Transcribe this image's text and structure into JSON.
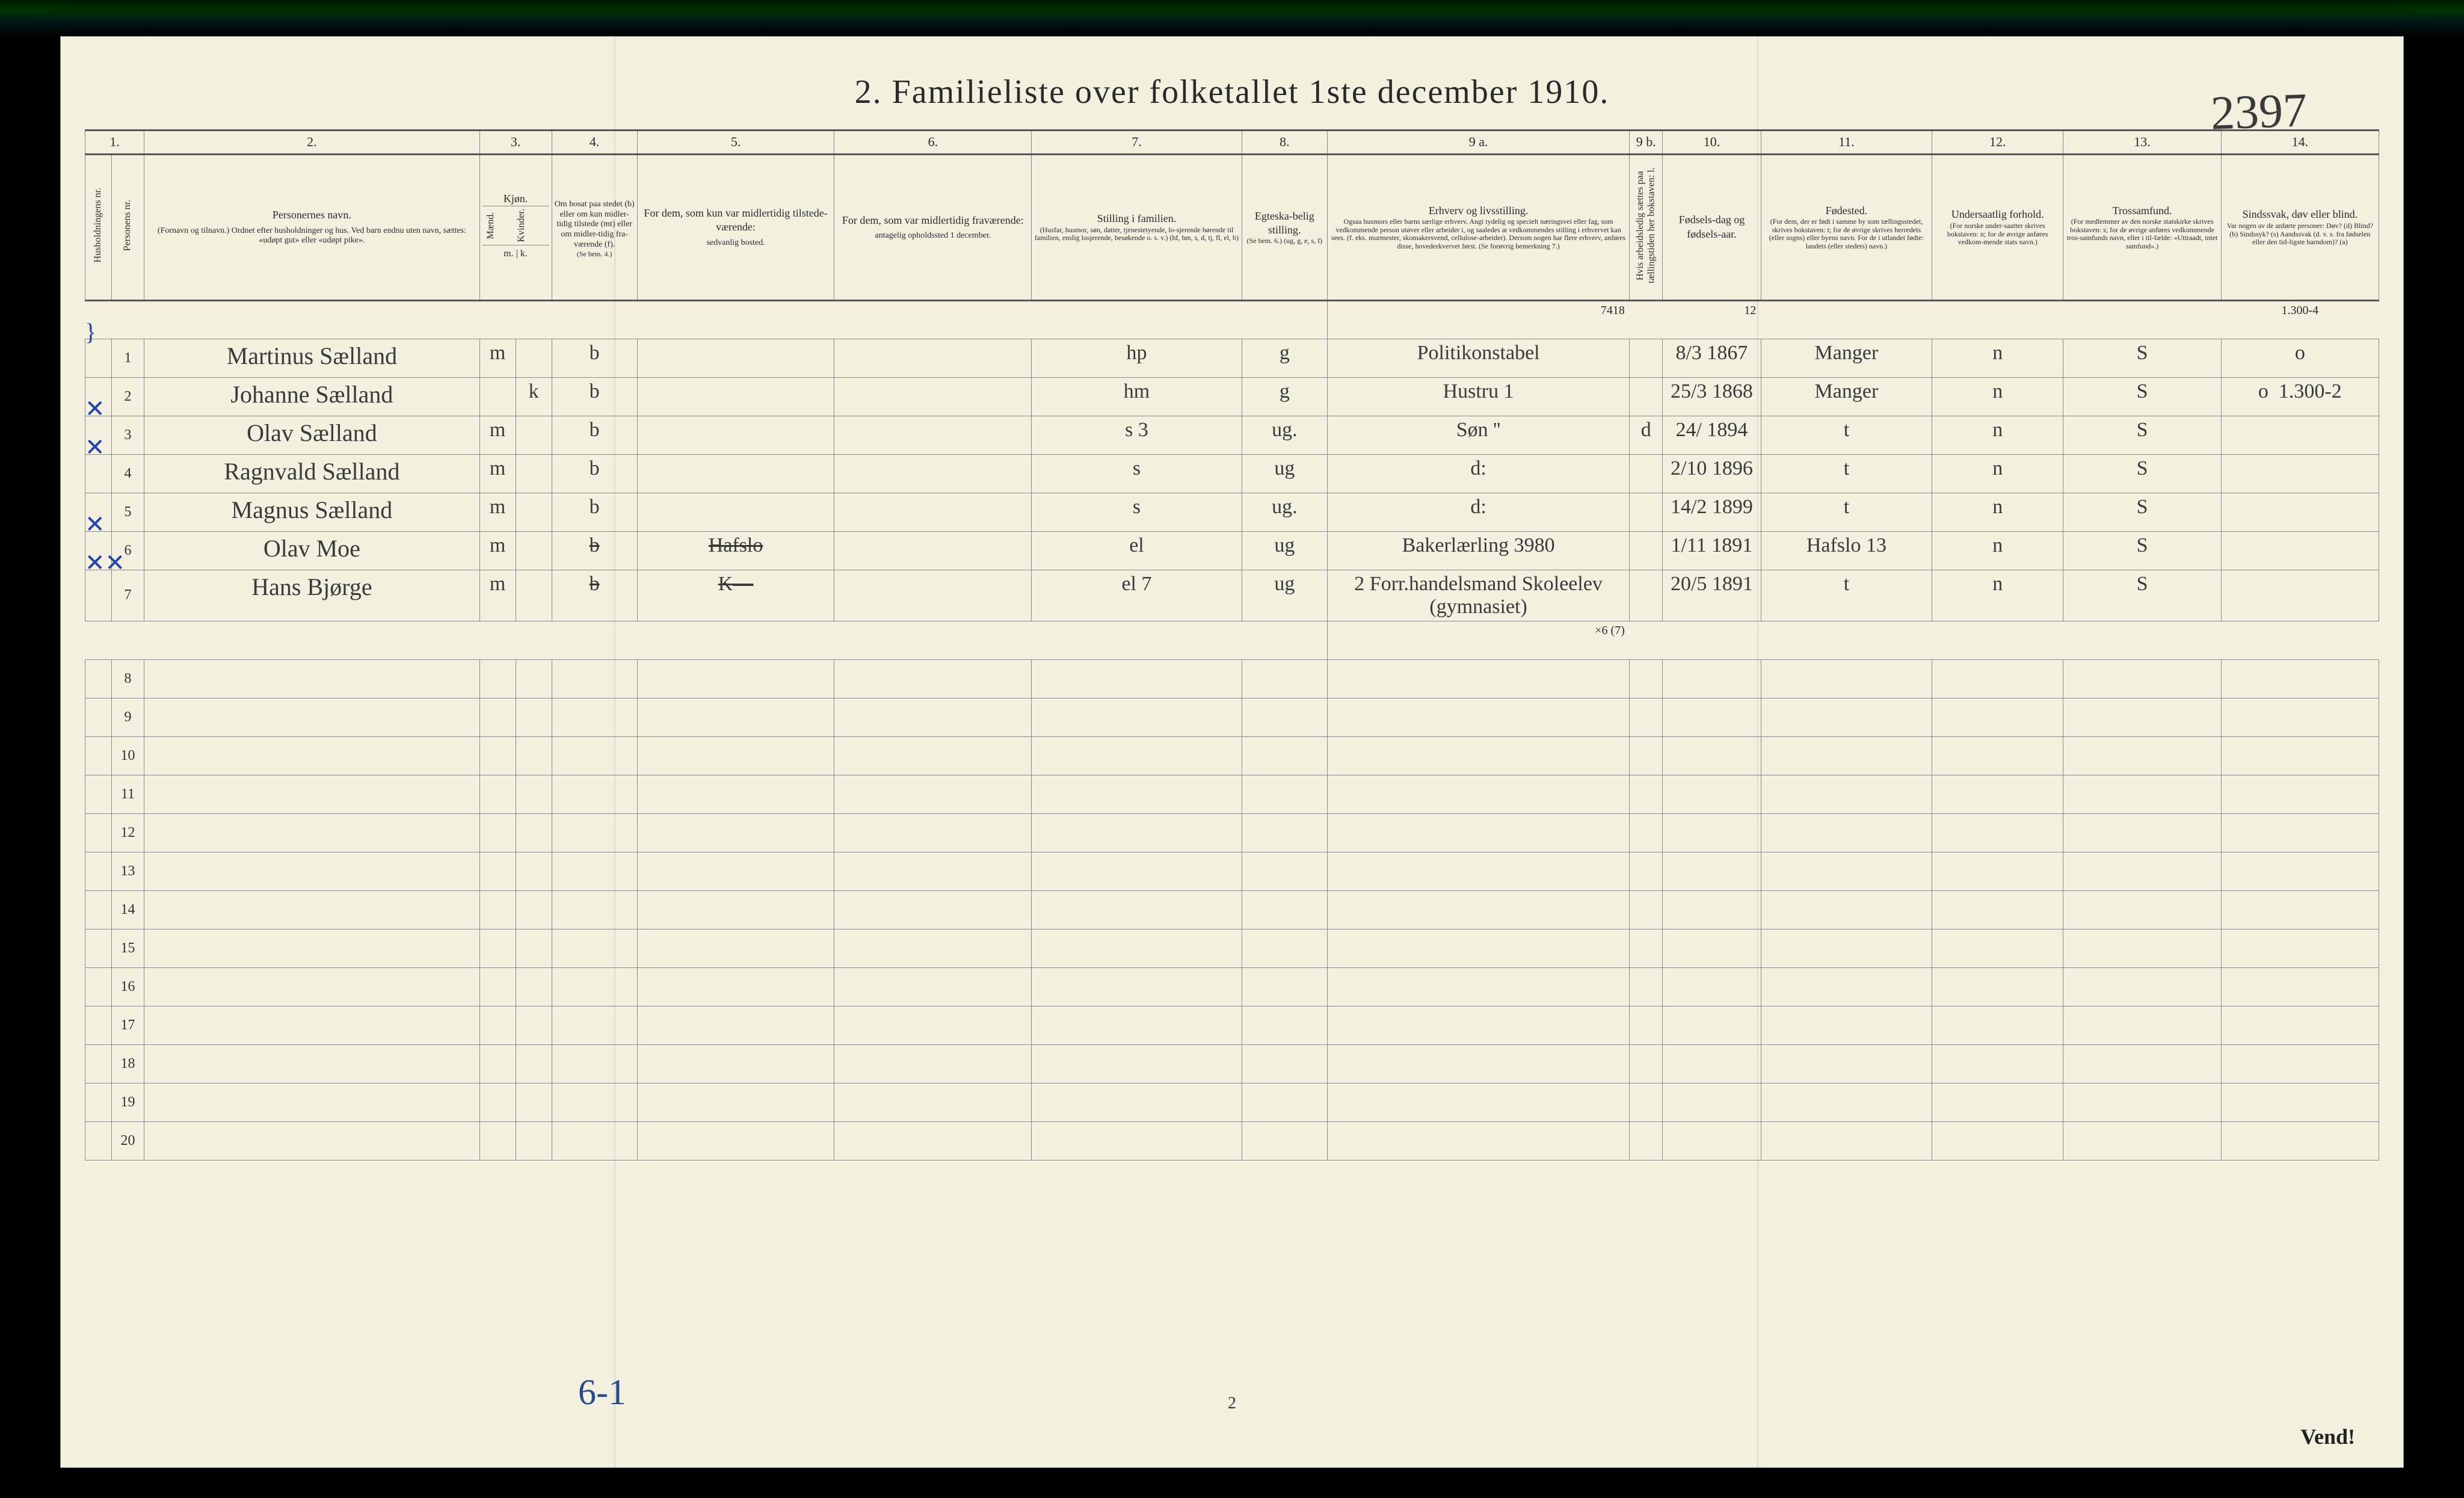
{
  "title": "2.   Familieliste over folketallet 1ste december 1910.",
  "handwritten_topright": "2397",
  "footer_left": "6-1",
  "footer_center": "2",
  "footer_right": "Vend!",
  "colors": {
    "paper": "#f4f0e0",
    "ink": "#2a2a2a",
    "rule": "#888888",
    "rule_heavy": "#555555",
    "pencil_blue": "#2244aa",
    "handwriting": "#3a3a3a"
  },
  "columns": {
    "nums": [
      "1.",
      "2.",
      "3.",
      "4.",
      "5.",
      "6.",
      "7.",
      "8.",
      "9 a.",
      "9 b.",
      "10.",
      "11.",
      "12.",
      "13.",
      "14."
    ],
    "c1_a": "Husholdningens nr.",
    "c1_b": "Personens nr.",
    "c2_title": "Personernes navn.",
    "c2_sub": "(Fornavn og tilnavn.)\nOrdnet efter husholdninger og hus.\nVed barn endnu uten navn, sættes: «udøpt gut» eller «udøpt pike».",
    "c3_title": "Kjøn.",
    "c3_sub": "Mænd. | Kvinder.",
    "c3_mk": "m. | k.",
    "c4_title": "Om bosat paa stedet (b) eller om kun midler-tidig tilstede (mt) eller om midler-tidig fra-værende (f).",
    "c4_sub": "(Se bem. 4.)",
    "c5_title": "For dem, som kun var midlertidig tilstede-værende:",
    "c5_sub": "sedvanlig bosted.",
    "c6_title": "For dem, som var midlertidig fraværende:",
    "c6_sub": "antagelig opholdssted 1 december.",
    "c7_title": "Stilling i familien.",
    "c7_sub": "(Husfar, husmor, søn, datter, tjenestetyende, lo-sjerende hørende til familien, enslig losjerende, besøkende o. s. v.)\n(hf, hm, s, d, tj, fl, el, b)",
    "c8_title": "Egteska-belig stilling.",
    "c8_sub": "(Se bem. 6.) (ug, g, e, s, f)",
    "c9a_title": "Erhverv og livsstilling.",
    "c9a_sub": "Ogsaa husmors eller barns særlige erhverv. Angi tydelig og specielt næringsvei eller fag, som vedkommende person utøver eller arbeider i, og saaledes at vedkommendes stilling i erhvervet kan sees. (f. eks. murmester, skomakersvend, cellulose-arbeider). Dersom nogen har flere erhverv, anføres disse, hovederkvervet først.\n(Se forøvrig bemerkning 7.)",
    "c9b_title": "Hvis arbeidsledig sættes paa tællingstiden her bokstaven: l.",
    "c10_title": "Fødsels-dag og fødsels-aar.",
    "c11_title": "Fødested.",
    "c11_sub": "(For dem, der er født i samme by som tællingsstedet, skrives bokstaven: t; for de øvrige skrives herredets (eller sogns) eller byens navn. For de i utlandet fødte: landets (eller stedets) navn.)",
    "c12_title": "Undersaatlig forhold.",
    "c12_sub": "(For norske under-saatter skrives bokstaven: n; for de øvrige anføres vedkom-mende stats navn.)",
    "c13_title": "Trossamfund.",
    "c13_sub": "(For medlemmer av den norske statskirke skrives bokstaven: s; for de øvrige anføres vedkommende tros-samfunds navn, eller i til-fælde: «Uttraadt, intet samfund».)",
    "c14_title": "Sindssvak, døv eller blind.",
    "c14_sub": "Var nogen av de anførte personer: Døv? (d) Blind? (b) Sindssyk? (s) Aandssvak (d. v. s. fra fødselen eller den tid-ligste barndom)? (a)"
  },
  "annotations": {
    "above_row1_c9": "7418",
    "above_row1_c10": "12",
    "right_margin_top": "1.300-4",
    "right_margin_2": "1.300-2",
    "row7_under": "×6 (7)"
  },
  "rows": [
    {
      "n": "1",
      "name": "Martinus Sælland",
      "m": "m",
      "k": "",
      "bosat": "b",
      "c5": "",
      "c6": "",
      "c7": "hp",
      "c8": "g",
      "c9a": "Politikonstabel",
      "c9b": "",
      "c10": "8/3 1867",
      "c11": "Manger",
      "c12": "n",
      "c13": "S",
      "c14": "o"
    },
    {
      "n": "2",
      "name": "Johanne Sælland",
      "m": "",
      "k": "k",
      "bosat": "b",
      "c5": "",
      "c6": "",
      "c7": "hm",
      "c8": "g",
      "c9a": "Hustru      1",
      "c9b": "",
      "c10": "25/3 1868",
      "c11": "Manger",
      "c12": "n",
      "c13": "S",
      "c14": "o"
    },
    {
      "n": "3",
      "name": "Olav Sælland",
      "m": "m",
      "k": "",
      "bosat": "b",
      "c5": "",
      "c6": "",
      "c7": "s   3",
      "c8": "ug.",
      "c9a": "Søn     ''",
      "c9b": "d",
      "c10": "24/ 1894",
      "c11": "t",
      "c12": "n",
      "c13": "S",
      "c14": ""
    },
    {
      "n": "4",
      "name": "Ragnvald Sælland",
      "m": "m",
      "k": "",
      "bosat": "b",
      "c5": "",
      "c6": "",
      "c7": "s",
      "c8": "ug",
      "c9a": "d:",
      "c9b": "",
      "c10": "2/10 1896",
      "c11": "t",
      "c12": "n",
      "c13": "S",
      "c14": ""
    },
    {
      "n": "5",
      "name": "Magnus Sælland",
      "m": "m",
      "k": "",
      "bosat": "b",
      "c5": "",
      "c6": "",
      "c7": "s",
      "c8": "ug.",
      "c9a": "d:",
      "c9b": "",
      "c10": "14/2 1899",
      "c11": "t",
      "c12": "n",
      "c13": "S",
      "c14": ""
    },
    {
      "n": "6",
      "name": "Olav Moe",
      "m": "m",
      "k": "",
      "bosat": "b",
      "c5": "Hafslo",
      "c6": "",
      "c7": "el",
      "c8": "ug",
      "c9a": "Bakerlærling 3980",
      "c9b": "",
      "c10": "1/11 1891",
      "c11": "Hafslo 13",
      "c12": "n",
      "c13": "S",
      "c14": ""
    },
    {
      "n": "7",
      "name": "Hans Bjørge",
      "m": "m",
      "k": "",
      "bosat": "b",
      "c5": "K—",
      "c6": "",
      "c7": "el   7",
      "c8": "ug",
      "c9a": "2 Forr.handelsmand Skoleelev (gymnasiet)",
      "c9b": "",
      "c10": "20/5 1891",
      "c11": "t",
      "c12": "n",
      "c13": "S",
      "c14": ""
    }
  ],
  "blank_rows": [
    8,
    9,
    10,
    11,
    12,
    13,
    14,
    15,
    16,
    17,
    18,
    19,
    20
  ],
  "left_marks": [
    "}",
    "",
    "✕",
    "✕",
    "",
    "✕",
    "✕✕"
  ]
}
